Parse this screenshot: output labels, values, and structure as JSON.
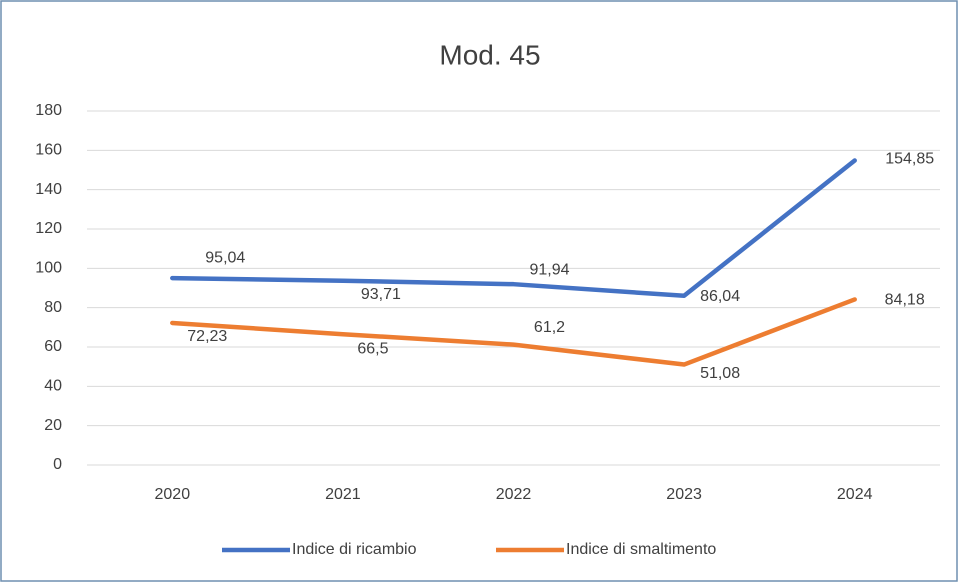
{
  "chart_data": {
    "type": "line",
    "title": "Mod. 45",
    "categories": [
      "2020",
      "2021",
      "2022",
      "2023",
      "2024"
    ],
    "series": [
      {
        "name": "Indice di ricambio",
        "color": "#4472c4",
        "values": [
          95.04,
          93.71,
          91.94,
          86.04,
          154.85
        ],
        "value_labels": [
          "95,04",
          "93,71",
          "91,94",
          "86,04",
          "154,85"
        ]
      },
      {
        "name": "Indice di smaltimento",
        "color": "#ed7d31",
        "values": [
          72.23,
          66.5,
          61.2,
          51.08,
          84.18
        ],
        "value_labels": [
          "72,23",
          "66,5",
          "61,2",
          "51,08",
          "84,18"
        ]
      }
    ],
    "ylim": [
      0,
      180
    ],
    "yticks": [
      0,
      20,
      40,
      60,
      80,
      100,
      120,
      140,
      160,
      180
    ],
    "grid": true,
    "legend": "bottom"
  }
}
